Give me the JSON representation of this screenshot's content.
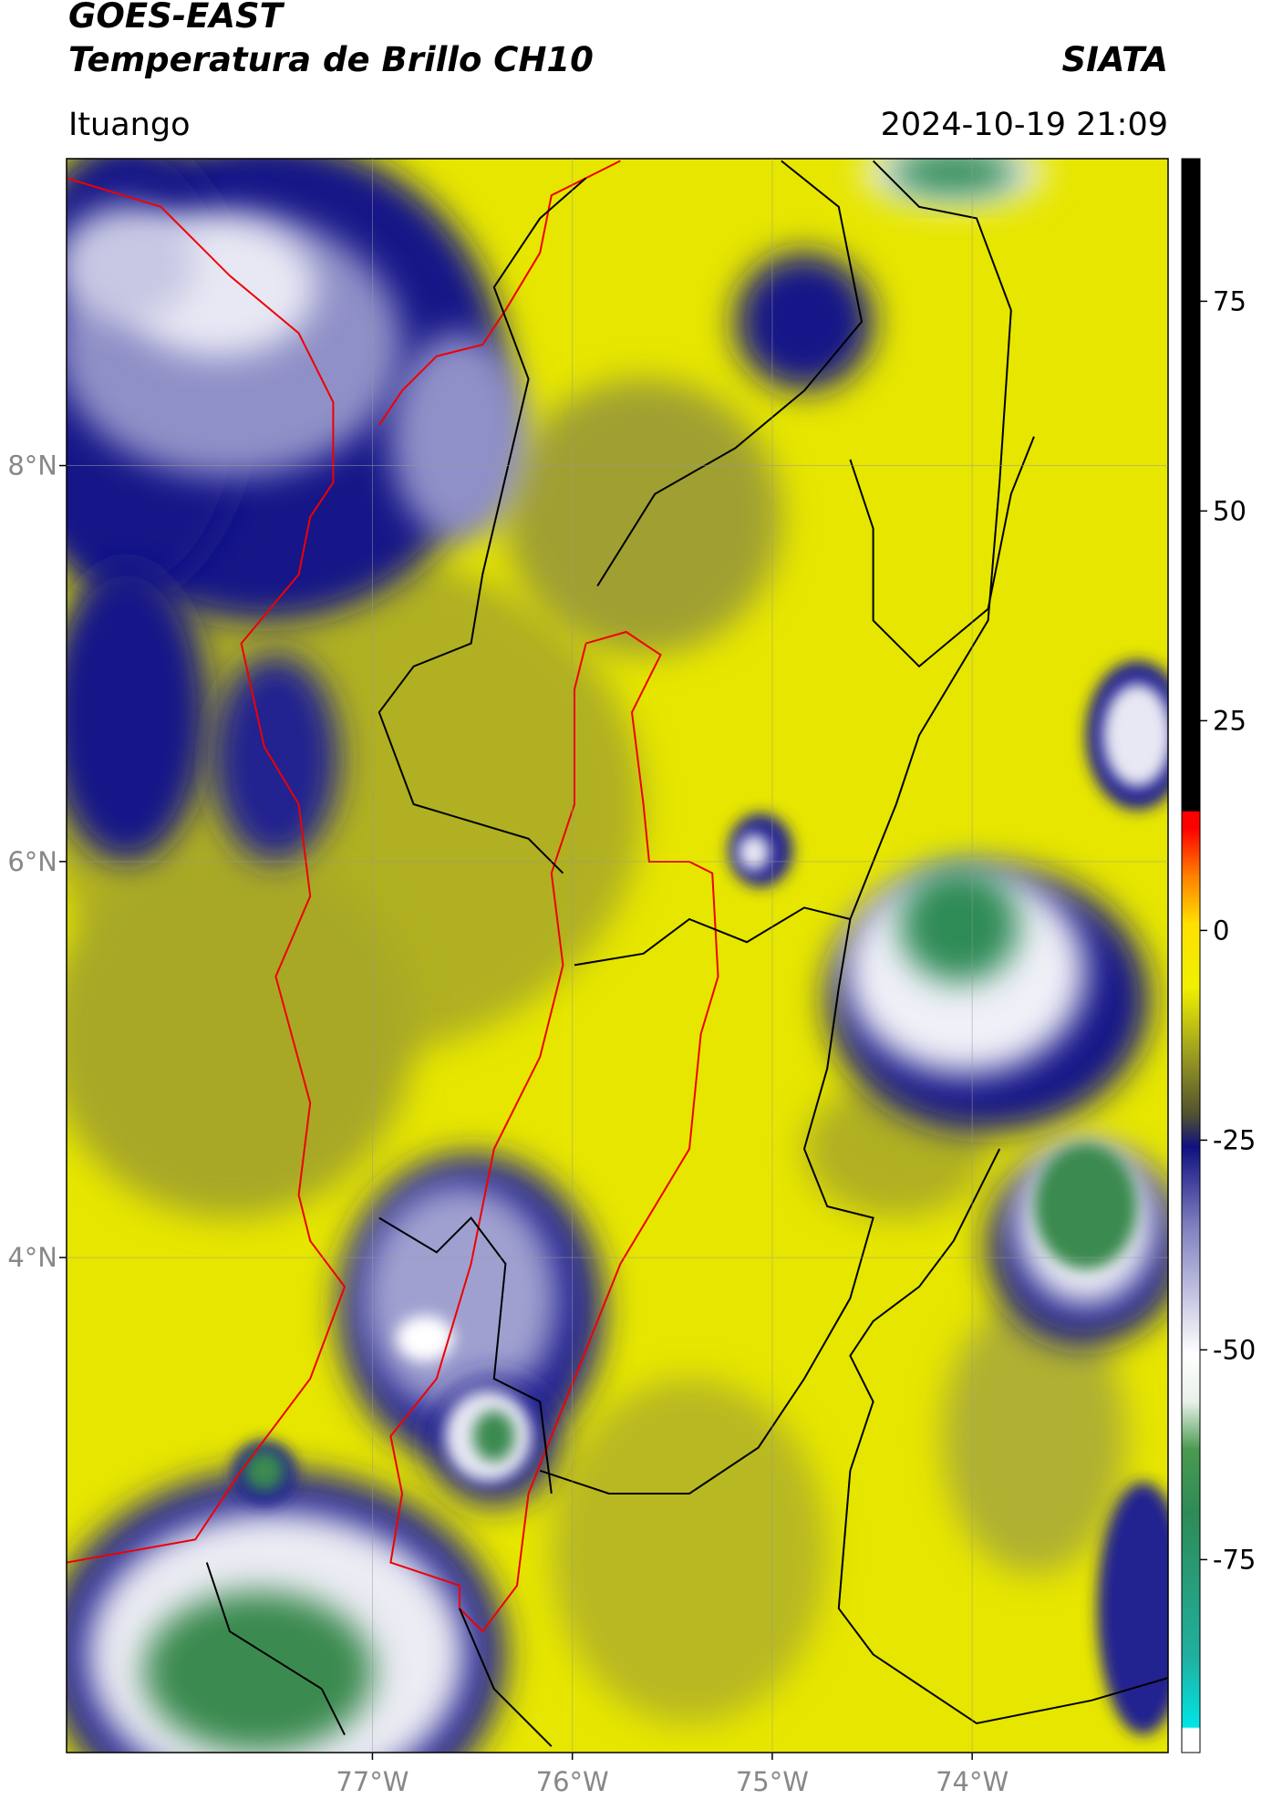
{
  "header": {
    "title": "GOES-EAST",
    "subtitle": "Temperatura de Brillo CH10",
    "source": "SIATA",
    "region": "Ituango",
    "timestamp": "2024-10-19 21:09"
  },
  "map": {
    "ylim": [
      1.5,
      9.55
    ],
    "xlim": [
      -78.53,
      -73.02
    ],
    "yticks": [
      {
        "value": 4,
        "label": "4°N"
      },
      {
        "value": 6,
        "label": "6°N"
      },
      {
        "value": 8,
        "label": "8°N"
      }
    ],
    "xticks": [
      {
        "value": -77,
        "label": "77°W"
      },
      {
        "value": -76,
        "label": "76°W"
      },
      {
        "value": -75,
        "label": "75°W"
      },
      {
        "value": -74,
        "label": "74°W"
      }
    ],
    "grid": true
  },
  "colorbar": {
    "range": [
      -98,
      92
    ],
    "ticks": [
      -75,
      -50,
      -25,
      0,
      25,
      50,
      75
    ]
  }
}
